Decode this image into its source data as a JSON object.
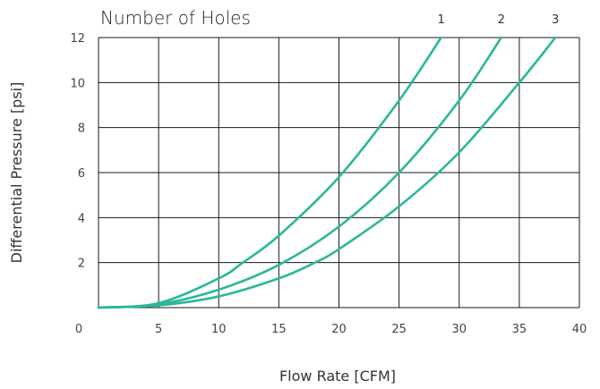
{
  "chart_data": {
    "type": "line",
    "title": "Number of Holes",
    "xlabel": "Flow Rate [CFM]",
    "ylabel": "Differential Pressure [psi]",
    "xlim": [
      0,
      40
    ],
    "ylim": [
      0,
      12
    ],
    "x_ticks": [
      "0",
      "5",
      "10",
      "15",
      "20",
      "25",
      "30",
      "35",
      "40"
    ],
    "y_ticks": [
      "2",
      "4",
      "6",
      "8",
      "10",
      "12"
    ],
    "grid": true,
    "line_color": "#2bb79b",
    "series": [
      {
        "name": "1",
        "x": [
          0,
          5,
          10,
          12,
          15,
          20,
          25,
          28.5
        ],
        "y": [
          0,
          0.2,
          1.3,
          2.0,
          3.2,
          5.8,
          9.2,
          12
        ]
      },
      {
        "name": "2",
        "x": [
          0,
          5,
          10,
          15,
          20,
          25,
          30,
          33.5
        ],
        "y": [
          0,
          0.15,
          0.8,
          1.9,
          3.6,
          6.0,
          9.2,
          12
        ]
      },
      {
        "name": "3",
        "x": [
          0,
          5,
          10,
          15,
          18,
          20,
          25,
          30,
          35,
          38
        ],
        "y": [
          0,
          0.1,
          0.5,
          1.3,
          2.0,
          2.6,
          4.5,
          6.9,
          10.0,
          12
        ]
      }
    ]
  }
}
